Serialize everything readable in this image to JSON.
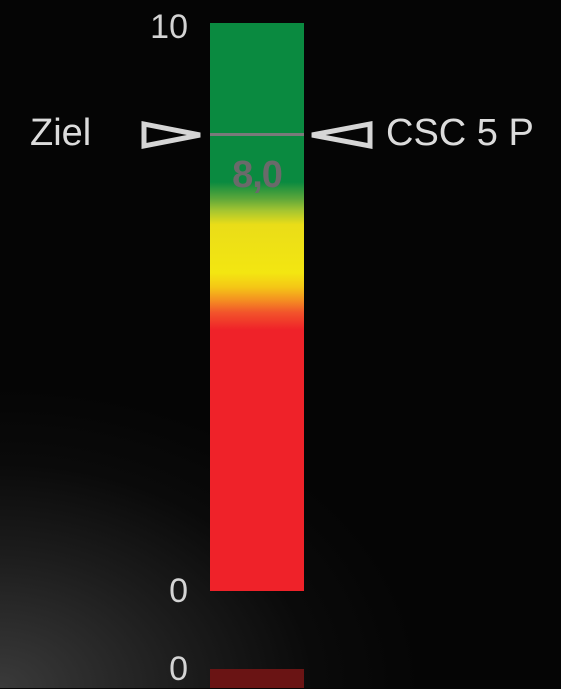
{
  "gauge": {
    "scale_max": "10",
    "scale_min": "0",
    "value_label": "8,0",
    "value": 8.0,
    "range": [
      0,
      10
    ],
    "target_label": "Ziel",
    "product_label": "CSC 5 P",
    "colors": {
      "green": "#0a8a40",
      "yellow": "#f3e611",
      "red": "#ef2229",
      "target_line": "#7a7a7a"
    }
  },
  "second_gauge": {
    "scale_min": "0",
    "color": "#6a1414"
  }
}
